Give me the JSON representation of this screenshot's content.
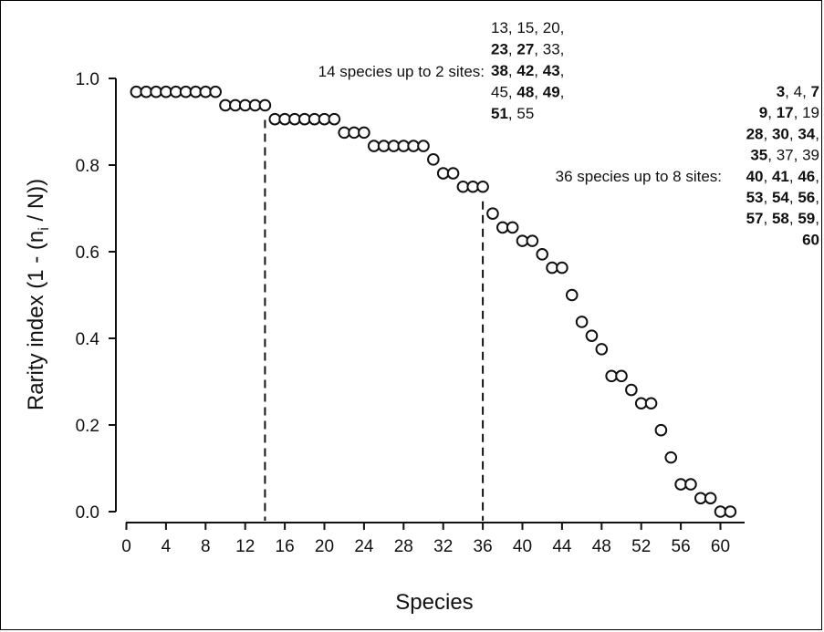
{
  "chart_data": {
    "type": "scatter",
    "xlabel": "Species",
    "ylabel": "Rarity index (1 - (n",
    "ylabel_sub": "i",
    "ylabel_tail": " / N))",
    "xlim": [
      0,
      62
    ],
    "ylim": [
      0,
      1
    ],
    "xticks": [
      "0",
      "4",
      "8",
      "12",
      "16",
      "20",
      "24",
      "28",
      "32",
      "36",
      "40",
      "44",
      "48",
      "52",
      "56",
      "60"
    ],
    "xtick_values": [
      0,
      4,
      8,
      12,
      16,
      20,
      24,
      28,
      32,
      36,
      40,
      44,
      48,
      52,
      56,
      60
    ],
    "yticks": [
      "0.0",
      "0.2",
      "0.4",
      "0.6",
      "0.8",
      "1.0"
    ],
    "ytick_values": [
      0,
      0.2,
      0.4,
      0.6,
      0.8,
      1.0
    ],
    "points": {
      "x": [
        1,
        2,
        3,
        4,
        5,
        6,
        7,
        8,
        9,
        10,
        11,
        12,
        13,
        14,
        15,
        16,
        17,
        18,
        19,
        20,
        21,
        22,
        23,
        24,
        25,
        26,
        27,
        28,
        29,
        30,
        31,
        32,
        33,
        34,
        35,
        36,
        37,
        38,
        39,
        40,
        41,
        42,
        43,
        44,
        45,
        46,
        47,
        48,
        49,
        50,
        51,
        52,
        53,
        54,
        55,
        56,
        57,
        58,
        59,
        60,
        61
      ],
      "y": [
        0.969,
        0.969,
        0.969,
        0.969,
        0.969,
        0.969,
        0.969,
        0.969,
        0.969,
        0.938,
        0.938,
        0.938,
        0.938,
        0.938,
        0.906,
        0.906,
        0.906,
        0.906,
        0.906,
        0.906,
        0.906,
        0.875,
        0.875,
        0.875,
        0.844,
        0.844,
        0.844,
        0.844,
        0.844,
        0.844,
        0.813,
        0.781,
        0.781,
        0.75,
        0.75,
        0.75,
        0.688,
        0.656,
        0.656,
        0.625,
        0.625,
        0.594,
        0.563,
        0.563,
        0.5,
        0.438,
        0.406,
        0.375,
        0.313,
        0.313,
        0.281,
        0.25,
        0.25,
        0.188,
        0.125,
        0.063,
        0.063,
        0.031,
        0.031,
        0.0,
        0.0
      ]
    },
    "reference_lines": [
      14,
      36
    ],
    "annotations": [
      {
        "label": "14 species up to 2 sites:",
        "species_lines": [
          [
            {
              "t": "13",
              "b": false
            },
            {
              "t": ", ",
              "b": false
            },
            {
              "t": "15",
              "b": false
            },
            {
              "t": ", ",
              "b": false
            },
            {
              "t": "20",
              "b": false
            },
            {
              "t": ",",
              "b": false
            }
          ],
          [
            {
              "t": "23",
              "b": true
            },
            {
              "t": ", ",
              "b": false
            },
            {
              "t": "27",
              "b": true
            },
            {
              "t": ", ",
              "b": false
            },
            {
              "t": "33",
              "b": false
            },
            {
              "t": ",",
              "b": false
            }
          ],
          [
            {
              "t": "38",
              "b": true
            },
            {
              "t": ", ",
              "b": false
            },
            {
              "t": "42",
              "b": true
            },
            {
              "t": ", ",
              "b": false
            },
            {
              "t": "43",
              "b": true
            },
            {
              "t": ",",
              "b": false
            }
          ],
          [
            {
              "t": "45",
              "b": false
            },
            {
              "t": ", ",
              "b": false
            },
            {
              "t": "48",
              "b": true
            },
            {
              "t": ", ",
              "b": false
            },
            {
              "t": "49",
              "b": true
            },
            {
              "t": ",",
              "b": false
            }
          ],
          [
            {
              "t": "51",
              "b": true
            },
            {
              "t": ", ",
              "b": false
            },
            {
              "t": "55",
              "b": false
            }
          ]
        ]
      },
      {
        "label": "36 species up to 8 sites:",
        "species_lines": [
          [
            {
              "t": "3",
              "b": true
            },
            {
              "t": ",   ",
              "b": false
            },
            {
              "t": "4",
              "b": false
            },
            {
              "t": ",   ",
              "b": false
            },
            {
              "t": "7",
              "b": true
            }
          ],
          [
            {
              "t": "9",
              "b": true
            },
            {
              "t": ", ",
              "b": false
            },
            {
              "t": "17",
              "b": true
            },
            {
              "t": ", ",
              "b": false
            },
            {
              "t": "19",
              "b": false
            }
          ],
          [
            {
              "t": "28",
              "b": true
            },
            {
              "t": ", ",
              "b": false
            },
            {
              "t": "30",
              "b": true
            },
            {
              "t": ", ",
              "b": false
            },
            {
              "t": "34",
              "b": true
            },
            {
              "t": ",",
              "b": false
            }
          ],
          [
            {
              "t": "35",
              "b": true
            },
            {
              "t": ", ",
              "b": false
            },
            {
              "t": "37",
              "b": false
            },
            {
              "t": ", ",
              "b": false
            },
            {
              "t": "39",
              "b": false
            }
          ],
          [
            {
              "t": "40",
              "b": true
            },
            {
              "t": ", ",
              "b": false
            },
            {
              "t": "41",
              "b": true
            },
            {
              "t": ", ",
              "b": false
            },
            {
              "t": "46",
              "b": true
            },
            {
              "t": ",",
              "b": false
            }
          ],
          [
            {
              "t": "53",
              "b": true
            },
            {
              "t": ", ",
              "b": false
            },
            {
              "t": "54",
              "b": true
            },
            {
              "t": ", ",
              "b": false
            },
            {
              "t": "56",
              "b": true
            },
            {
              "t": ",",
              "b": false
            }
          ],
          [
            {
              "t": "57",
              "b": true
            },
            {
              "t": ", ",
              "b": false
            },
            {
              "t": "58",
              "b": true
            },
            {
              "t": ", ",
              "b": false
            },
            {
              "t": "59",
              "b": true
            },
            {
              "t": ",",
              "b": false
            }
          ],
          [
            {
              "t": "60",
              "b": true
            }
          ]
        ]
      }
    ]
  }
}
